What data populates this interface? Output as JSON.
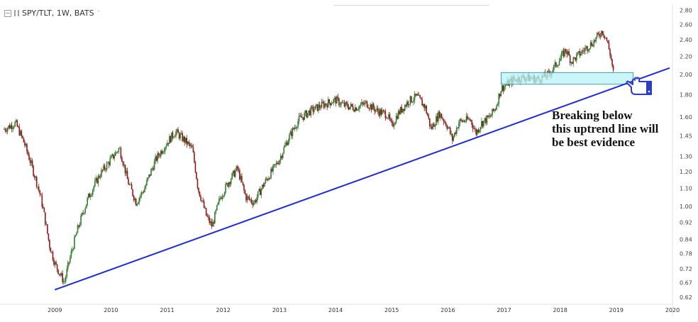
{
  "header": {
    "symbol": "SPY/TLT, 1W, BATS",
    "caret": "˅"
  },
  "annotation": {
    "lines": [
      "Breaking below",
      "this uptrend line will",
      "be best evidence"
    ]
  },
  "icons": {
    "pointer": "pointing-hand-icon"
  },
  "colors": {
    "up": "#2e7d32",
    "down": "#8b1a1a",
    "trendline": "#1f2bd6",
    "zone_fill": "#b8f3f8",
    "zone_border": "#4a9aa8",
    "hand": "#2a3bd0"
  },
  "chart_data": {
    "type": "candlestick",
    "title": "SPY/TLT, 1W, BATS",
    "y_scale": "log",
    "y_ticks": [
      "2.80",
      "2.60",
      "2.40",
      "2.20",
      "2.00",
      "1.80",
      "1.60",
      "1.45",
      "1.30",
      "1.20",
      "1.10",
      "1.00",
      "0.92",
      "0.84",
      "0.78",
      "0.72",
      "0.67",
      "0.62"
    ],
    "x_ticks": [
      "2009",
      "2010",
      "2011",
      "2012",
      "2013",
      "2014",
      "2015",
      "2016",
      "2017",
      "2018",
      "2019",
      "2020"
    ],
    "ylim": [
      0.6,
      2.85
    ],
    "xlim": [
      2008.1,
      2020.0
    ],
    "price_path": [
      [
        2008.1,
        1.5
      ],
      [
        2008.3,
        1.55
      ],
      [
        2008.45,
        1.4
      ],
      [
        2008.62,
        1.2
      ],
      [
        2008.75,
        1.05
      ],
      [
        2008.9,
        0.82
      ],
      [
        2009.0,
        0.74
      ],
      [
        2009.17,
        0.67
      ],
      [
        2009.4,
        0.88
      ],
      [
        2009.6,
        1.05
      ],
      [
        2009.8,
        1.18
      ],
      [
        2010.0,
        1.28
      ],
      [
        2010.15,
        1.36
      ],
      [
        2010.3,
        1.14
      ],
      [
        2010.45,
        1.02
      ],
      [
        2010.6,
        1.1
      ],
      [
        2010.8,
        1.28
      ],
      [
        2011.0,
        1.4
      ],
      [
        2011.15,
        1.48
      ],
      [
        2011.3,
        1.42
      ],
      [
        2011.45,
        1.35
      ],
      [
        2011.55,
        1.1
      ],
      [
        2011.7,
        0.95
      ],
      [
        2011.8,
        0.9
      ],
      [
        2011.95,
        1.05
      ],
      [
        2012.1,
        1.14
      ],
      [
        2012.25,
        1.22
      ],
      [
        2012.4,
        1.05
      ],
      [
        2012.55,
        1.02
      ],
      [
        2012.75,
        1.14
      ],
      [
        2012.9,
        1.22
      ],
      [
        2013.0,
        1.28
      ],
      [
        2013.15,
        1.42
      ],
      [
        2013.35,
        1.58
      ],
      [
        2013.55,
        1.65
      ],
      [
        2013.75,
        1.7
      ],
      [
        2014.0,
        1.75
      ],
      [
        2014.15,
        1.7
      ],
      [
        2014.35,
        1.68
      ],
      [
        2014.55,
        1.72
      ],
      [
        2014.75,
        1.65
      ],
      [
        2014.92,
        1.62
      ],
      [
        2015.0,
        1.52
      ],
      [
        2015.1,
        1.62
      ],
      [
        2015.3,
        1.74
      ],
      [
        2015.45,
        1.78
      ],
      [
        2015.6,
        1.68
      ],
      [
        2015.7,
        1.5
      ],
      [
        2015.85,
        1.63
      ],
      [
        2016.0,
        1.52
      ],
      [
        2016.08,
        1.42
      ],
      [
        2016.2,
        1.56
      ],
      [
        2016.4,
        1.58
      ],
      [
        2016.5,
        1.47
      ],
      [
        2016.6,
        1.55
      ],
      [
        2016.75,
        1.6
      ],
      [
        2016.85,
        1.68
      ],
      [
        2016.95,
        1.86
      ],
      [
        2017.15,
        1.94
      ],
      [
        2017.35,
        1.97
      ],
      [
        2017.6,
        1.95
      ],
      [
        2017.8,
        2.0
      ],
      [
        2018.0,
        2.17
      ],
      [
        2018.1,
        2.28
      ],
      [
        2018.2,
        2.14
      ],
      [
        2018.4,
        2.26
      ],
      [
        2018.6,
        2.38
      ],
      [
        2018.75,
        2.52
      ],
      [
        2018.82,
        2.42
      ],
      [
        2018.9,
        2.2
      ],
      [
        2018.95,
        2.0
      ]
    ],
    "candles_per_year": 52,
    "trendline": {
      "points": [
        [
          2009.0,
          0.645
        ],
        [
          2019.95,
          2.07
        ]
      ]
    },
    "zone": {
      "x": [
        2016.95,
        2019.3
      ],
      "y": [
        1.9,
        2.02
      ]
    }
  }
}
